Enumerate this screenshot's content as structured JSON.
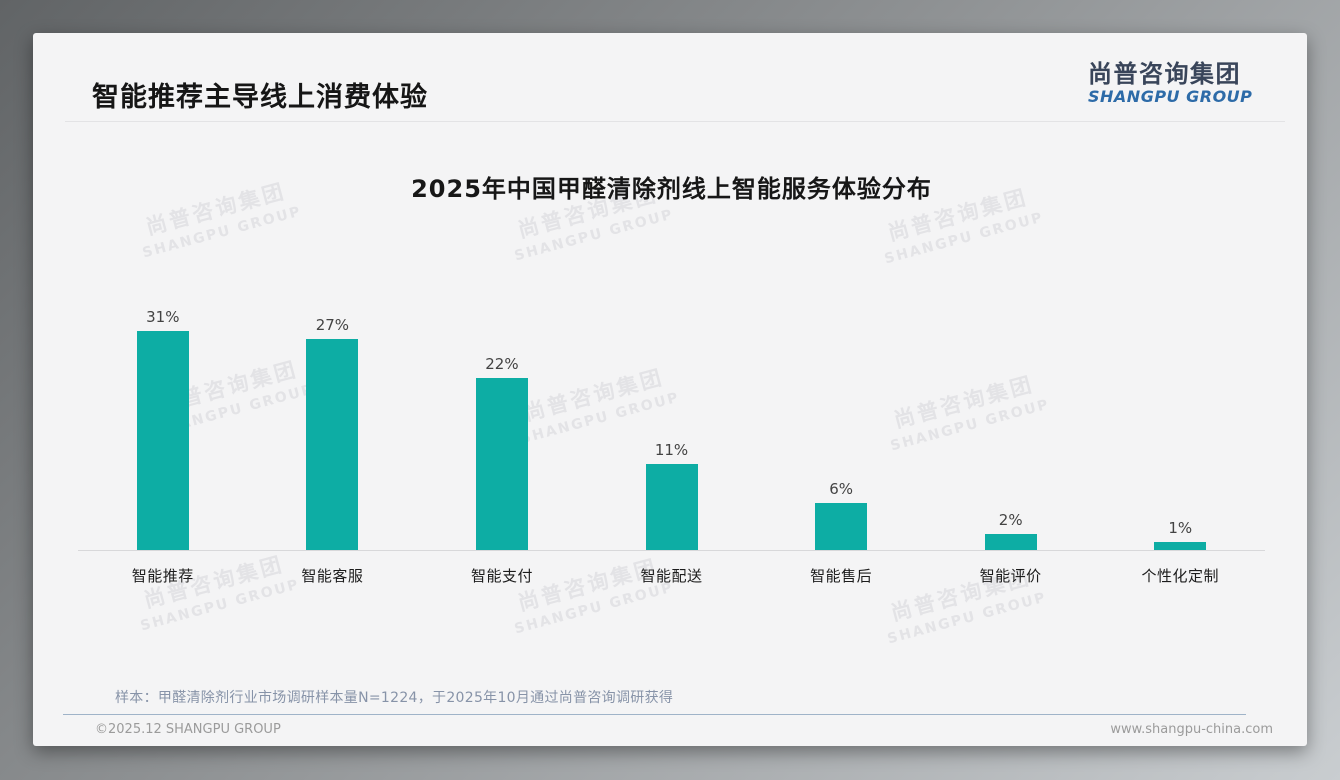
{
  "page": {
    "header_title": "智能推荐主导线上消费体验",
    "logo": {
      "name_cn": "尚普咨询集团",
      "name_en": "SHANGPU GROUP"
    },
    "watermark": {
      "line1": "尚普咨询集团",
      "line2": "SHANGPU GROUP"
    },
    "note": "样本：甲醛清除剂行业市场调研样本量N=1224，于2025年10月通过尚普咨询调研获得",
    "footer": {
      "left": "©2025.12 SHANGPU GROUP",
      "right": "www.shangpu-china.com"
    }
  },
  "colors": {
    "bar_teal": "#0dada4",
    "logo_blue": "#2d6ba8",
    "logo_dark": "#39455a",
    "note_gray_blue": "#8793a8",
    "card_background": "#f4f4f5"
  },
  "chart_data": {
    "type": "bar",
    "title": "2025年中国甲醛清除剂线上智能服务体验分布",
    "categories": [
      "智能推荐",
      "智能客服",
      "智能支付",
      "智能配送",
      "智能售后",
      "智能评价",
      "个性化定制"
    ],
    "values": [
      31,
      27,
      22,
      11,
      6,
      2,
      1
    ],
    "value_labels": [
      "31%",
      "27%",
      "22%",
      "11%",
      "6%",
      "2%",
      "1%"
    ],
    "unit": "%",
    "ylim": [
      0,
      31
    ],
    "bar_color": "#0dada4",
    "grid": false,
    "legend": false,
    "value_labels_position": "above-bars",
    "x_axis_line": true
  }
}
